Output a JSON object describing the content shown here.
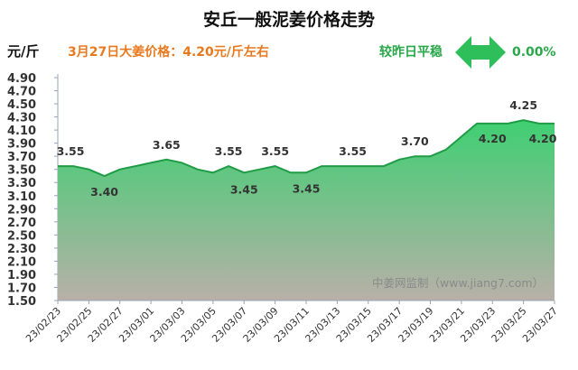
{
  "header": {
    "title": "安丘一般泥姜价格走势",
    "unit": "元/斤",
    "subtitle": "3月27日大姜价格：4.20元/斤左右",
    "compare_label": "较昨日平稳",
    "compare_value": "0.00%"
  },
  "watermark": "中姜网监制（www.jiang7.com）",
  "colors": {
    "line": "#1f9c45",
    "fill_top": "#3fcf72",
    "fill_bottom": "#b8b0a8",
    "subtitle": "#e8791e",
    "compare": "#2aa84a",
    "arrow": "#2fbf5a"
  },
  "icons": {
    "compare": "double-arrow-icon"
  },
  "chart_data": {
    "type": "area",
    "title": "安丘一般泥姜价格走势",
    "ylabel": "元/斤",
    "ylim": [
      1.5,
      4.9
    ],
    "yticks": [
      1.5,
      1.7,
      1.9,
      2.1,
      2.3,
      2.5,
      2.7,
      2.9,
      3.1,
      3.3,
      3.5,
      3.7,
      3.9,
      4.1,
      4.3,
      4.5,
      4.7,
      4.9
    ],
    "grid": false,
    "x": [
      "23/02/23",
      "23/02/24",
      "23/02/25",
      "23/02/26",
      "23/02/27",
      "23/02/28",
      "23/03/01",
      "23/03/02",
      "23/03/03",
      "23/03/04",
      "23/03/05",
      "23/03/06",
      "23/03/07",
      "23/03/08",
      "23/03/09",
      "23/03/10",
      "23/03/11",
      "23/03/12",
      "23/03/13",
      "23/03/14",
      "23/03/15",
      "23/03/16",
      "23/03/17",
      "23/03/18",
      "23/03/19",
      "23/03/20",
      "23/03/21",
      "23/03/22",
      "23/03/23",
      "23/03/24",
      "23/03/25",
      "23/03/26",
      "23/03/27"
    ],
    "xtick_labels": [
      "23/02/23",
      "23/02/25",
      "23/02/27",
      "23/03/01",
      "23/03/03",
      "23/03/05",
      "23/03/07",
      "23/03/09",
      "23/03/11",
      "23/03/13",
      "23/03/15",
      "23/03/17",
      "23/03/19",
      "23/03/21",
      "23/03/23",
      "23/03/25",
      "23/03/27"
    ],
    "values": [
      3.55,
      3.55,
      3.5,
      3.4,
      3.5,
      3.55,
      3.6,
      3.65,
      3.6,
      3.5,
      3.45,
      3.55,
      3.45,
      3.5,
      3.55,
      3.45,
      3.45,
      3.55,
      3.55,
      3.55,
      3.55,
      3.55,
      3.65,
      3.7,
      3.7,
      3.8,
      4.0,
      4.2,
      4.2,
      4.2,
      4.25,
      4.2,
      4.2
    ],
    "data_labels": [
      {
        "date": "23/02/23",
        "text": "3.55"
      },
      {
        "date": "23/02/26",
        "text": "3.40"
      },
      {
        "date": "23/03/02",
        "text": "3.65"
      },
      {
        "date": "23/03/06",
        "text": "3.55"
      },
      {
        "date": "23/03/07",
        "text": "3.45"
      },
      {
        "date": "23/03/09",
        "text": "3.55"
      },
      {
        "date": "23/03/11",
        "text": "3.45"
      },
      {
        "date": "23/03/14",
        "text": "3.55"
      },
      {
        "date": "23/03/18",
        "text": "3.70"
      },
      {
        "date": "23/03/23",
        "text": "4.20"
      },
      {
        "date": "23/03/25",
        "text": "4.25"
      },
      {
        "date": "23/03/27",
        "text": "4.20"
      }
    ]
  }
}
